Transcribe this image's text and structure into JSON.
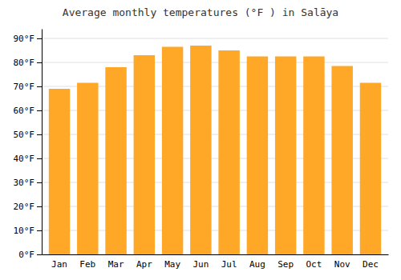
{
  "chart_data": {
    "type": "bar",
    "title": "Average monthly temperatures (°F ) in Salāya",
    "categories": [
      "Jan",
      "Feb",
      "Mar",
      "Apr",
      "May",
      "Jun",
      "Jul",
      "Aug",
      "Sep",
      "Oct",
      "Nov",
      "Dec"
    ],
    "values": [
      69,
      71.5,
      78,
      83,
      86.5,
      87,
      85,
      82.5,
      82.5,
      82.5,
      78.5,
      71.5
    ],
    "color": "#FFA726",
    "ylim": [
      0,
      94
    ],
    "yticks": [
      {
        "value": 0,
        "label": "0°F"
      },
      {
        "value": 10,
        "label": "10°F"
      },
      {
        "value": 20,
        "label": "20°F"
      },
      {
        "value": 30,
        "label": "30°F"
      },
      {
        "value": 40,
        "label": "40°F"
      },
      {
        "value": 50,
        "label": "50°F"
      },
      {
        "value": 60,
        "label": "60°F"
      },
      {
        "value": 70,
        "label": "70°F"
      },
      {
        "value": 80,
        "label": "80°F"
      },
      {
        "value": 90,
        "label": "90°F"
      }
    ],
    "grid": true
  }
}
